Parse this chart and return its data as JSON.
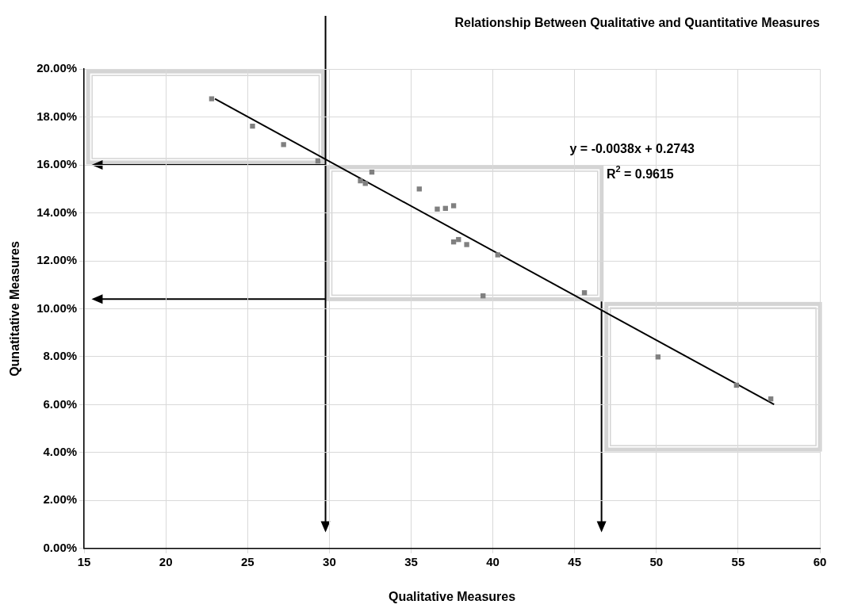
{
  "chart_data": {
    "type": "scatter",
    "title": "Relationship Between Qualitative and Quantitative Measures",
    "xlabel": "Qualitative Measures",
    "ylabel": "Qunatitative Measures",
    "xlim": [
      15,
      60
    ],
    "xticks": [
      15,
      20,
      25,
      30,
      35,
      40,
      45,
      50,
      55,
      60
    ],
    "ylim": [
      0,
      0.2
    ],
    "yticks": [
      {
        "value": 0,
        "label": "0.00%"
      },
      {
        "value": 0.02,
        "label": "2.00%"
      },
      {
        "value": 0.04,
        "label": "4.00%"
      },
      {
        "value": 0.06,
        "label": "6.00%"
      },
      {
        "value": 0.08,
        "label": "8.00%"
      },
      {
        "value": 0.1,
        "label": "10.00%"
      },
      {
        "value": 0.12,
        "label": "12.00%"
      },
      {
        "value": 0.14,
        "label": "14.00%"
      },
      {
        "value": 0.16,
        "label": "16.00%"
      },
      {
        "value": 0.18,
        "label": "18.00%"
      },
      {
        "value": 0.2,
        "label": "20.00%"
      }
    ],
    "grid": true,
    "legend": false,
    "series": [
      {
        "type": "scatter",
        "marker": "square",
        "color": "#808080",
        "x": [
          22.8,
          25.3,
          27.2,
          29.3,
          31.9,
          32.2,
          32.6,
          35.5,
          36.6,
          37.1,
          37.6,
          37.6,
          37.9,
          38.4,
          40.3,
          39.4,
          45.6,
          50.1,
          54.9,
          57.0
        ],
        "values": [
          0.1876,
          0.1762,
          0.1685,
          0.1617,
          0.1534,
          0.1523,
          0.157,
          0.15,
          0.1416,
          0.1419,
          0.143,
          0.1279,
          0.1289,
          0.1268,
          0.1225,
          0.1054,
          0.1067,
          0.0799,
          0.0681,
          0.0624
        ]
      },
      {
        "type": "line",
        "marker": "none",
        "color": "#000000",
        "x": [
          23.0,
          57.2
        ],
        "values": [
          0.1876,
          0.0601
        ]
      }
    ],
    "annotations": [
      "y = -0.0038x + 0.2743",
      "R$^{2}$ = 0.9615"
    ]
  }
}
